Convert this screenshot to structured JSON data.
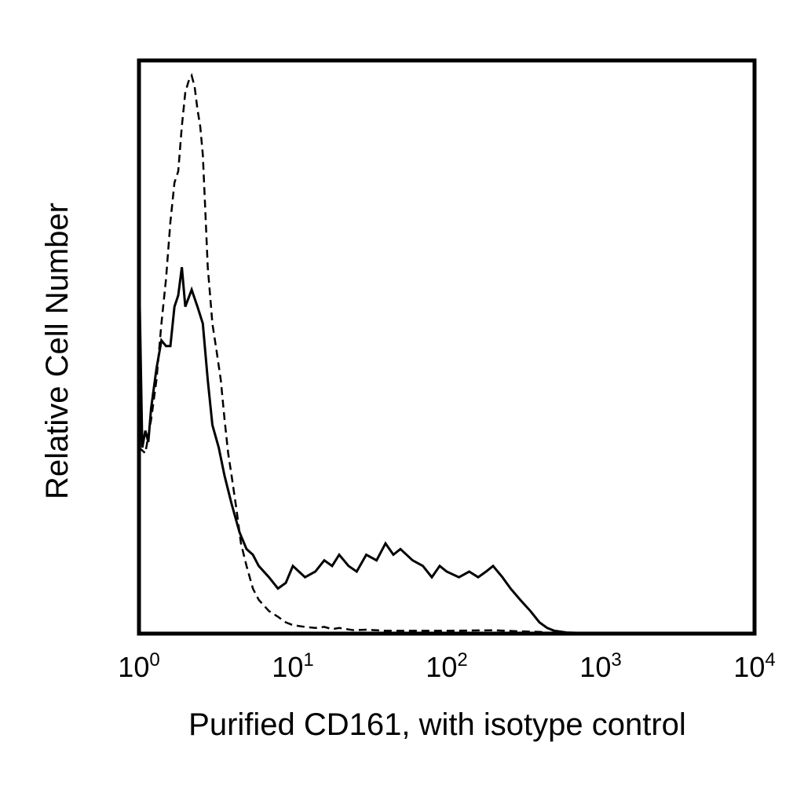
{
  "chart_data": {
    "type": "line",
    "title": "",
    "xlabel": "Purified CD161, with isotype control",
    "ylabel": "Relative Cell Number",
    "x_scale": "log",
    "xlim": [
      1,
      10000
    ],
    "ylim": [
      0,
      100
    ],
    "grid": false,
    "legend": "none",
    "x_ticks": [
      {
        "base": "10",
        "exp": "0"
      },
      {
        "base": "10",
        "exp": "1"
      },
      {
        "base": "10",
        "exp": "2"
      },
      {
        "base": "10",
        "exp": "3"
      },
      {
        "base": "10",
        "exp": "4"
      }
    ],
    "series": [
      {
        "style": "solid",
        "color": "#000000",
        "x": [
          1.0,
          1.05,
          1.1,
          1.15,
          1.2,
          1.3,
          1.4,
          1.5,
          1.6,
          1.7,
          1.8,
          1.9,
          2.0,
          2.2,
          2.4,
          2.6,
          2.8,
          3.0,
          3.3,
          3.6,
          4.0,
          4.5,
          5.0,
          5.5,
          6.0,
          7.0,
          8.0,
          9.0,
          10.0,
          12,
          14,
          16,
          18,
          20,
          23,
          26,
          30,
          35,
          40,
          45,
          50,
          60,
          70,
          80,
          90,
          100,
          120,
          140,
          160,
          180,
          200,
          230,
          260,
          300,
          350,
          400,
          450,
          500,
          600,
          1000,
          10000
        ],
        "values": [
          66,
          33,
          36,
          34,
          40,
          47,
          52,
          51,
          51,
          58,
          60,
          65,
          58,
          61,
          58,
          55,
          45,
          37,
          33,
          28,
          23,
          18,
          15,
          14,
          12,
          10,
          8,
          9,
          12,
          10,
          11,
          13,
          12,
          14,
          12,
          11,
          14,
          13,
          16,
          14,
          15,
          13,
          12,
          10,
          12,
          11,
          10,
          11,
          10,
          11,
          12,
          10,
          8,
          6,
          4,
          2,
          1,
          0.5,
          0.2,
          0,
          0
        ]
      },
      {
        "style": "dashed",
        "color": "#000000",
        "x": [
          1.0,
          1.1,
          1.2,
          1.3,
          1.4,
          1.5,
          1.6,
          1.7,
          1.8,
          1.9,
          2.0,
          2.1,
          2.2,
          2.3,
          2.4,
          2.5,
          2.6,
          2.7,
          2.8,
          2.9,
          3.0,
          3.2,
          3.4,
          3.6,
          3.8,
          4.0,
          4.3,
          4.6,
          5.0,
          5.5,
          6.0,
          7.0,
          8.0,
          9.0,
          10,
          12,
          14,
          16,
          18,
          20,
          25,
          30,
          40,
          60,
          100,
          200,
          300,
          400,
          500,
          1000,
          10000
        ],
        "values": [
          33,
          32,
          38,
          45,
          55,
          63,
          73,
          80,
          82,
          90,
          96,
          98,
          99,
          97,
          93,
          90,
          85,
          75,
          65,
          60,
          55,
          50,
          45,
          38,
          32,
          28,
          22,
          16,
          12,
          8,
          6,
          4,
          3,
          2,
          1.5,
          1.2,
          1.0,
          1.2,
          0.8,
          1.0,
          0.6,
          0.7,
          0.5,
          0.5,
          0.5,
          0.6,
          0.4,
          0.3,
          0.1,
          0,
          0
        ]
      }
    ]
  }
}
